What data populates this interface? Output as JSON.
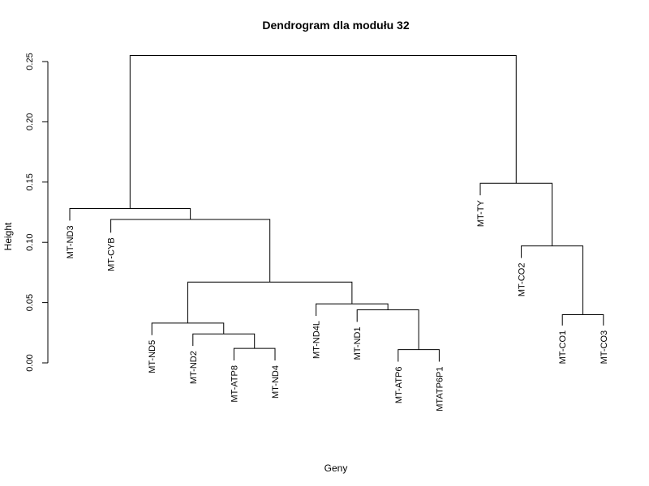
{
  "chart_data": {
    "type": "dendrogram",
    "title": "Dendrogram dla modułu 32",
    "xlabel": "Geny",
    "ylabel": "Height",
    "ylim": [
      0,
      0.25
    ],
    "yticks": [
      0.0,
      0.05,
      0.1,
      0.15,
      0.2,
      0.25
    ],
    "ytick_labels": [
      "0.00",
      "0.05",
      "0.10",
      "0.15",
      "0.20",
      "0.25"
    ],
    "leaves": [
      {
        "label": "MT-ND3",
        "height": 0.118
      },
      {
        "label": "MT-CYB",
        "height": 0.108
      },
      {
        "label": "MT-ND5",
        "height": 0.023
      },
      {
        "label": "MT-ND2",
        "height": 0.014
      },
      {
        "label": "MT-ATP8",
        "height": 0.002
      },
      {
        "label": "MT-ND4",
        "height": 0.002
      },
      {
        "label": "MT-ND4L",
        "height": 0.039
      },
      {
        "label": "MT-ND1",
        "height": 0.034
      },
      {
        "label": "MT-ATP6",
        "height": 0.001
      },
      {
        "label": "MTATP6P1",
        "height": 0.001
      },
      {
        "label": "MT-TY",
        "height": 0.139
      },
      {
        "label": "MT-CO2",
        "height": 0.087
      },
      {
        "label": "MT-CO1",
        "height": 0.031
      },
      {
        "label": "MT-CO3",
        "height": 0.031
      }
    ],
    "merges": [
      {
        "left": [
          "leaf",
          5
        ],
        "right": [
          "leaf",
          6
        ],
        "height": 0.012
      },
      {
        "left": [
          "leaf",
          9
        ],
        "right": [
          "leaf",
          10
        ],
        "height": 0.011
      },
      {
        "left": [
          "leaf",
          13
        ],
        "right": [
          "leaf",
          14
        ],
        "height": 0.04
      },
      {
        "left": [
          "leaf",
          4
        ],
        "right": [
          "node",
          1
        ],
        "height": 0.024
      },
      {
        "left": [
          "leaf",
          8
        ],
        "right": [
          "node",
          2
        ],
        "height": 0.044
      },
      {
        "left": [
          "leaf",
          3
        ],
        "right": [
          "node",
          4
        ],
        "height": 0.033
      },
      {
        "left": [
          "leaf",
          7
        ],
        "right": [
          "node",
          5
        ],
        "height": 0.049
      },
      {
        "left": [
          "node",
          6
        ],
        "right": [
          "node",
          7
        ],
        "height": 0.067
      },
      {
        "left": [
          "leaf",
          12
        ],
        "right": [
          "node",
          3
        ],
        "height": 0.097
      },
      {
        "left": [
          "leaf",
          2
        ],
        "right": [
          "node",
          8
        ],
        "height": 0.119
      },
      {
        "left": [
          "leaf",
          1
        ],
        "right": [
          "node",
          10
        ],
        "height": 0.128
      },
      {
        "left": [
          "leaf",
          11
        ],
        "right": [
          "node",
          9
        ],
        "height": 0.149
      },
      {
        "left": [
          "node",
          11
        ],
        "right": [
          "node",
          12
        ],
        "height": 0.255
      }
    ]
  }
}
